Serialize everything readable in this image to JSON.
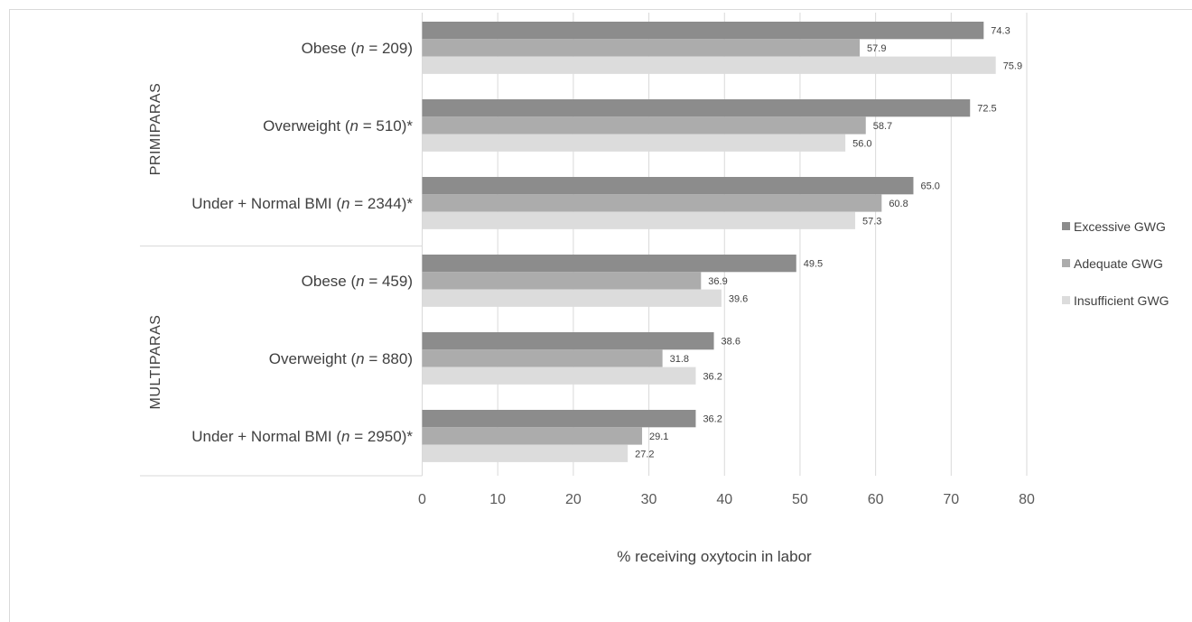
{
  "chart_data": {
    "type": "bar",
    "orientation": "horizontal",
    "xlabel": "% receiving oxytocin in labor",
    "xlim": [
      0,
      80
    ],
    "xticks": [
      0,
      10,
      20,
      30,
      40,
      50,
      60,
      70,
      80
    ],
    "grid": true,
    "legend_position": "right",
    "series": [
      {
        "name": "Excessive GWG",
        "color": "#8c8c8c"
      },
      {
        "name": "Adequate GWG",
        "color": "#acacac"
      },
      {
        "name": "Insufficient GWG",
        "color": "#dcdcdc"
      }
    ],
    "groups": [
      {
        "label": "PRIMIPARAS",
        "categories": [
          {
            "pre": "Obese (",
            "n": "n",
            "post": " = 209)",
            "values": [
              74.3,
              57.9,
              75.9
            ],
            "labels": [
              "74.3",
              "57.9",
              "75.9"
            ]
          },
          {
            "pre": "Overweight (",
            "n": "n",
            "post": " = 510)*",
            "values": [
              72.5,
              58.7,
              56.0
            ],
            "labels": [
              "72.5",
              "58.7",
              "56.0"
            ]
          },
          {
            "pre": "Under + Normal BMI (",
            "n": "n",
            "post": " = 2344)*",
            "values": [
              65.0,
              60.8,
              57.3
            ],
            "labels": [
              "65.0",
              "60.8",
              "57.3"
            ]
          }
        ]
      },
      {
        "label": "MULTIPARAS",
        "categories": [
          {
            "pre": "Obese (",
            "n": "n",
            "post": " = 459)",
            "values": [
              49.5,
              36.9,
              39.6
            ],
            "labels": [
              "49.5",
              "36.9",
              "39.6"
            ]
          },
          {
            "pre": "Overweight (",
            "n": "n",
            "post": " = 880)",
            "values": [
              38.6,
              31.8,
              36.2
            ],
            "labels": [
              "38.6",
              "31.8",
              "36.2"
            ]
          },
          {
            "pre": "Under + Normal BMI (",
            "n": "n",
            "post": " = 2950)*",
            "values": [
              36.2,
              29.1,
              27.2
            ],
            "labels": [
              "36.2",
              "29.1",
              "27.2"
            ]
          }
        ]
      }
    ]
  }
}
